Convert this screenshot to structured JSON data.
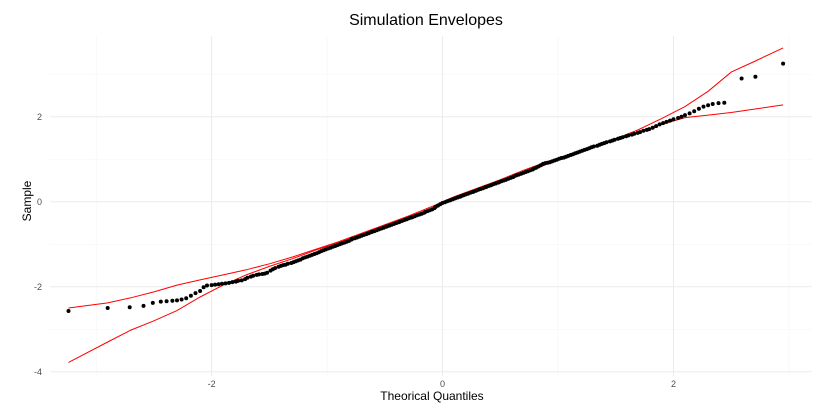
{
  "chart_data": {
    "type": "scatter",
    "title": "Simulation Envelopes",
    "xlabel": "Theorical Quantiles",
    "ylabel": "Sample",
    "xlim": [
      -3.4,
      3.2
    ],
    "ylim": [
      -4.1,
      3.9
    ],
    "x_ticks": [
      -2,
      0,
      2
    ],
    "y_ticks": [
      -4,
      -2,
      0,
      2
    ],
    "grid": true,
    "colors": {
      "points": "#000000",
      "envelope": "#ff0000"
    },
    "series": [
      {
        "kind": "points",
        "x": [
          -3.24,
          -2.9,
          -2.71,
          -2.59,
          -2.51,
          -2.44,
          -2.39,
          -2.34,
          -2.3,
          -2.26,
          -2.22,
          -2.18,
          -2.14,
          -2.1,
          -2.07,
          -2.04,
          -2.0,
          -1.97,
          -1.94,
          -1.91,
          -1.88,
          -1.85,
          -1.82,
          -1.79,
          -1.77,
          -1.74,
          -1.71,
          -1.69,
          -1.66,
          -1.64,
          -1.61,
          -1.59,
          -1.56,
          -1.54,
          -1.52,
          -1.49,
          -1.47,
          -1.45,
          -1.42,
          -1.4,
          -1.38,
          -1.36,
          -1.34,
          -1.31,
          -1.29,
          -1.27,
          -1.25,
          -1.23,
          -1.21,
          -1.19,
          -1.17,
          -1.15,
          -1.13,
          -1.11,
          -1.09,
          -1.07,
          -1.05,
          -1.03,
          -1.01,
          -0.99,
          -0.97,
          -0.95,
          -0.93,
          -0.91,
          -0.89,
          -0.87,
          -0.85,
          -0.83,
          -0.81,
          -0.79,
          -0.78,
          -0.76,
          -0.74,
          -0.72,
          -0.7,
          -0.68,
          -0.66,
          -0.64,
          -0.62,
          -0.61,
          -0.59,
          -0.57,
          -0.55,
          -0.53,
          -0.51,
          -0.49,
          -0.48,
          -0.46,
          -0.44,
          -0.42,
          -0.4,
          -0.38,
          -0.37,
          -0.35,
          -0.33,
          -0.31,
          -0.29,
          -0.27,
          -0.26,
          -0.24,
          -0.22,
          -0.2,
          -0.18,
          -0.16,
          -0.15,
          -0.13,
          -0.11,
          -0.09,
          -0.07,
          -0.06,
          -0.04,
          -0.02,
          0.0,
          0.02,
          0.04,
          0.06,
          0.07,
          0.09,
          0.11,
          0.13,
          0.15,
          0.16,
          0.18,
          0.2,
          0.22,
          0.24,
          0.26,
          0.27,
          0.29,
          0.31,
          0.33,
          0.35,
          0.37,
          0.38,
          0.4,
          0.42,
          0.44,
          0.46,
          0.48,
          0.49,
          0.51,
          0.53,
          0.55,
          0.57,
          0.59,
          0.61,
          0.62,
          0.64,
          0.66,
          0.68,
          0.7,
          0.72,
          0.74,
          0.76,
          0.78,
          0.79,
          0.81,
          0.83,
          0.85,
          0.87,
          0.89,
          0.91,
          0.93,
          0.95,
          0.97,
          0.99,
          1.01,
          1.03,
          1.05,
          1.07,
          1.09,
          1.11,
          1.13,
          1.15,
          1.17,
          1.19,
          1.21,
          1.23,
          1.25,
          1.27,
          1.29,
          1.31,
          1.34,
          1.36,
          1.38,
          1.4,
          1.42,
          1.45,
          1.47,
          1.49,
          1.52,
          1.54,
          1.56,
          1.59,
          1.61,
          1.64,
          1.66,
          1.69,
          1.71,
          1.74,
          1.77,
          1.79,
          1.82,
          1.85,
          1.88,
          1.91,
          1.94,
          1.97,
          2.0,
          2.04,
          2.07,
          2.1,
          2.14,
          2.18,
          2.22,
          2.26,
          2.3,
          2.34,
          2.39,
          2.44,
          2.59,
          2.71,
          2.95
        ],
        "y": [
          -2.57,
          -2.5,
          -2.48,
          -2.45,
          -2.38,
          -2.35,
          -2.34,
          -2.33,
          -2.32,
          -2.3,
          -2.27,
          -2.21,
          -2.15,
          -2.1,
          -2.01,
          -1.97,
          -1.96,
          -1.95,
          -1.94,
          -1.93,
          -1.92,
          -1.91,
          -1.89,
          -1.88,
          -1.86,
          -1.85,
          -1.82,
          -1.79,
          -1.76,
          -1.74,
          -1.72,
          -1.71,
          -1.7,
          -1.69,
          -1.67,
          -1.62,
          -1.59,
          -1.56,
          -1.53,
          -1.51,
          -1.49,
          -1.48,
          -1.46,
          -1.44,
          -1.42,
          -1.4,
          -1.38,
          -1.36,
          -1.33,
          -1.31,
          -1.29,
          -1.27,
          -1.25,
          -1.23,
          -1.21,
          -1.19,
          -1.16,
          -1.14,
          -1.12,
          -1.1,
          -1.08,
          -1.06,
          -1.04,
          -1.02,
          -1.0,
          -0.98,
          -0.96,
          -0.94,
          -0.92,
          -0.89,
          -0.87,
          -0.86,
          -0.84,
          -0.82,
          -0.8,
          -0.78,
          -0.76,
          -0.74,
          -0.72,
          -0.71,
          -0.69,
          -0.67,
          -0.65,
          -0.63,
          -0.61,
          -0.59,
          -0.58,
          -0.56,
          -0.54,
          -0.52,
          -0.5,
          -0.48,
          -0.47,
          -0.45,
          -0.43,
          -0.41,
          -0.39,
          -0.37,
          -0.36,
          -0.34,
          -0.32,
          -0.3,
          -0.28,
          -0.26,
          -0.24,
          -0.22,
          -0.2,
          -0.18,
          -0.15,
          -0.12,
          -0.09,
          -0.06,
          -0.03,
          -0.01,
          0.01,
          0.03,
          0.04,
          0.06,
          0.08,
          0.1,
          0.12,
          0.13,
          0.15,
          0.17,
          0.19,
          0.21,
          0.23,
          0.24,
          0.26,
          0.28,
          0.3,
          0.32,
          0.34,
          0.35,
          0.37,
          0.39,
          0.41,
          0.43,
          0.45,
          0.46,
          0.48,
          0.5,
          0.52,
          0.54,
          0.56,
          0.58,
          0.6,
          0.62,
          0.64,
          0.66,
          0.68,
          0.7,
          0.72,
          0.74,
          0.76,
          0.78,
          0.8,
          0.83,
          0.86,
          0.89,
          0.91,
          0.92,
          0.93,
          0.95,
          0.97,
          0.99,
          1.01,
          1.03,
          1.04,
          1.06,
          1.08,
          1.1,
          1.12,
          1.14,
          1.16,
          1.18,
          1.2,
          1.22,
          1.24,
          1.26,
          1.28,
          1.3,
          1.32,
          1.34,
          1.36,
          1.38,
          1.4,
          1.42,
          1.44,
          1.46,
          1.48,
          1.5,
          1.52,
          1.54,
          1.56,
          1.58,
          1.6,
          1.62,
          1.64,
          1.67,
          1.69,
          1.71,
          1.74,
          1.78,
          1.82,
          1.85,
          1.88,
          1.91,
          1.94,
          1.97,
          2.0,
          2.04,
          2.08,
          2.13,
          2.19,
          2.24,
          2.27,
          2.3,
          2.32,
          2.33,
          2.9,
          2.94,
          3.25
        ]
      },
      {
        "kind": "line",
        "role": "upper",
        "x": [
          -3.24,
          -2.9,
          -2.7,
          -2.5,
          -2.3,
          -2.1,
          -1.9,
          -1.7,
          -1.5,
          -1.3,
          -1.1,
          -0.9,
          -0.7,
          -0.5,
          -0.3,
          -0.1,
          0.1,
          0.3,
          0.5,
          0.7,
          0.9,
          1.1,
          1.3,
          1.5,
          1.7,
          1.9,
          2.1,
          2.3,
          2.5,
          2.7,
          2.95
        ],
        "y": [
          -2.5,
          -2.38,
          -2.26,
          -2.12,
          -1.96,
          -1.84,
          -1.72,
          -1.6,
          -1.46,
          -1.3,
          -1.12,
          -0.94,
          -0.74,
          -0.54,
          -0.34,
          -0.12,
          0.12,
          0.32,
          0.52,
          0.74,
          0.94,
          1.12,
          1.3,
          1.48,
          1.7,
          1.96,
          2.24,
          2.6,
          3.05,
          3.3,
          3.62
        ]
      },
      {
        "kind": "line",
        "role": "lower",
        "x": [
          -3.24,
          -2.9,
          -2.7,
          -2.5,
          -2.3,
          -2.1,
          -1.9,
          -1.7,
          -1.5,
          -1.3,
          -1.1,
          -0.9,
          -0.7,
          -0.5,
          -0.3,
          -0.1,
          0.1,
          0.3,
          0.5,
          0.7,
          0.9,
          1.1,
          1.3,
          1.5,
          1.7,
          1.9,
          2.1,
          2.3,
          2.5,
          2.7,
          2.95
        ],
        "y": [
          -3.78,
          -3.3,
          -3.02,
          -2.8,
          -2.56,
          -2.24,
          -1.96,
          -1.72,
          -1.52,
          -1.34,
          -1.14,
          -0.96,
          -0.76,
          -0.56,
          -0.36,
          -0.16,
          0.06,
          0.26,
          0.46,
          0.66,
          0.88,
          1.08,
          1.28,
          1.46,
          1.64,
          1.82,
          1.98,
          2.04,
          2.1,
          2.18,
          2.28
        ]
      }
    ]
  }
}
